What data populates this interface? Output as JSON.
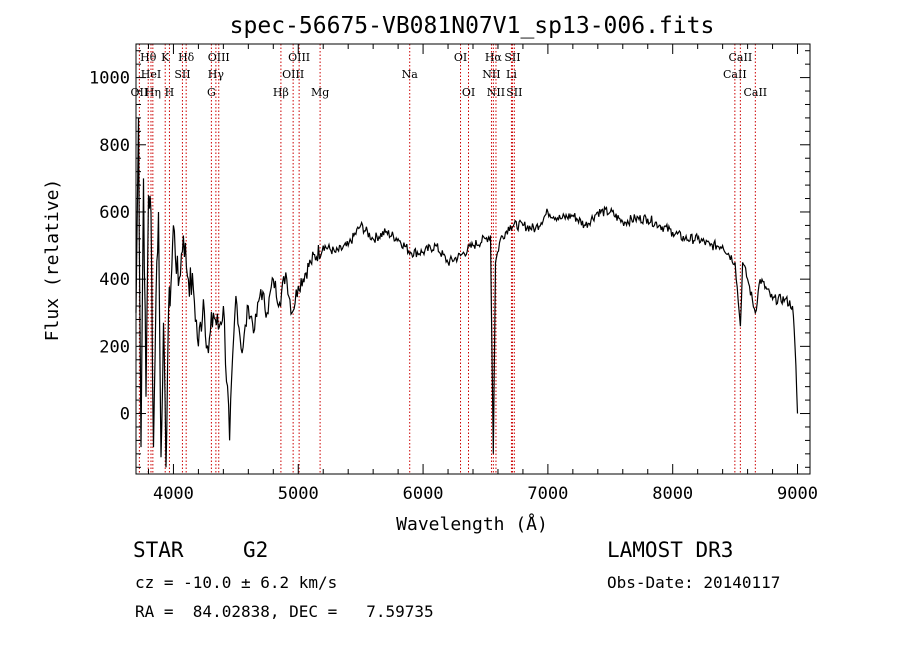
{
  "chart_data": {
    "type": "line",
    "title": "spec-56675-VB081N07V1_sp13-006.fits",
    "xlabel": "Wavelength (Å)",
    "ylabel": "Flux (relative)",
    "xlim": [
      3700,
      9100
    ],
    "ylim": [
      -180,
      1100
    ],
    "x_ticks": [
      4000,
      5000,
      6000,
      7000,
      8000,
      9000
    ],
    "y_ticks": [
      0,
      200,
      400,
      600,
      800,
      1000
    ],
    "series": [
      {
        "name": "spectrum",
        "x": [
          3700,
          3720,
          3740,
          3760,
          3780,
          3800,
          3820,
          3840,
          3860,
          3880,
          3900,
          3920,
          3940,
          3960,
          3980,
          4000,
          4040,
          4080,
          4120,
          4160,
          4200,
          4240,
          4280,
          4320,
          4360,
          4400,
          4450,
          4500,
          4550,
          4600,
          4650,
          4700,
          4750,
          4800,
          4850,
          4900,
          4950,
          5000,
          5100,
          5200,
          5300,
          5400,
          5500,
          5600,
          5700,
          5800,
          5900,
          6000,
          6100,
          6200,
          6300,
          6400,
          6500,
          6540,
          6563,
          6580,
          6620,
          6700,
          6800,
          6900,
          7000,
          7100,
          7200,
          7300,
          7400,
          7500,
          7600,
          7700,
          7800,
          7900,
          8000,
          8100,
          8200,
          8300,
          8400,
          8500,
          8542,
          8560,
          8600,
          8662,
          8700,
          8800,
          8900,
          8960,
          8980,
          9000
        ],
        "values": [
          300,
          880,
          -100,
          700,
          50,
          650,
          600,
          -100,
          350,
          600,
          -130,
          270,
          -160,
          300,
          380,
          560,
          380,
          530,
          400,
          370,
          200,
          340,
          180,
          300,
          250,
          320,
          -80,
          350,
          180,
          320,
          250,
          370,
          300,
          400,
          330,
          420,
          300,
          380,
          450,
          500,
          480,
          500,
          560,
          520,
          540,
          520,
          480,
          480,
          500,
          450,
          470,
          500,
          520,
          530,
          -120,
          450,
          520,
          560,
          560,
          550,
          600,
          580,
          590,
          560,
          600,
          600,
          570,
          580,
          580,
          560,
          540,
          520,
          520,
          500,
          500,
          450,
          260,
          450,
          400,
          300,
          400,
          340,
          340,
          320,
          200,
          0
        ]
      }
    ],
    "lines": [
      {
        "name": "Hθ",
        "wave": 3798,
        "row": 1
      },
      {
        "name": "OII",
        "wave": 3727,
        "row": 3
      },
      {
        "name": "HeI",
        "wave": 3820,
        "row": 2
      },
      {
        "name": "Hη",
        "wave": 3835,
        "row": 3
      },
      {
        "name": "K",
        "wave": 3934,
        "row": 1
      },
      {
        "name": "H",
        "wave": 3968,
        "row": 3
      },
      {
        "name": "SII",
        "wave": 4072,
        "row": 2
      },
      {
        "name": "Hδ",
        "wave": 4102,
        "row": 1
      },
      {
        "name": "OIII",
        "wave": 4363,
        "row": 1
      },
      {
        "name": "Hγ",
        "wave": 4340,
        "row": 2
      },
      {
        "name": "G",
        "wave": 4304,
        "row": 3
      },
      {
        "name": "Hβ",
        "wave": 4861,
        "row": 3
      },
      {
        "name": "OIII",
        "wave": 5007,
        "row": 1
      },
      {
        "name": "OIII",
        "wave": 4959,
        "row": 2
      },
      {
        "name": "Mg",
        "wave": 5175,
        "row": 3
      },
      {
        "name": "Na",
        "wave": 5893,
        "row": 2
      },
      {
        "name": "OI",
        "wave": 6300,
        "row": 1
      },
      {
        "name": "OI",
        "wave": 6364,
        "row": 3
      },
      {
        "name": "Hα",
        "wave": 6563,
        "row": 1
      },
      {
        "name": "NII",
        "wave": 6548,
        "row": 2
      },
      {
        "name": "NII",
        "wave": 6584,
        "row": 3
      },
      {
        "name": "Li",
        "wave": 6708,
        "row": 2
      },
      {
        "name": "SII",
        "wave": 6716,
        "row": 1
      },
      {
        "name": "SII",
        "wave": 6731,
        "row": 3
      },
      {
        "name": "CaII",
        "wave": 8542,
        "row": 1
      },
      {
        "name": "CaII",
        "wave": 8498,
        "row": 2
      },
      {
        "name": "CaII",
        "wave": 8662,
        "row": 3
      }
    ],
    "annotations": {
      "lines_color": "#cc0000",
      "curve_color": "#000000"
    }
  },
  "info": {
    "class": "STAR",
    "subclass": "G2",
    "survey": "LAMOST DR3",
    "cz": "cz = -10.0 ± 6.2 km/s",
    "obs_date": "Obs-Date: 20140117",
    "radec": "RA =  84.02838, DEC =   7.59735"
  }
}
